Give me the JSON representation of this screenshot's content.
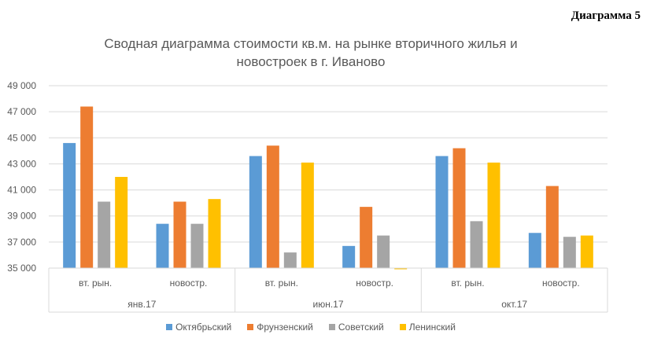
{
  "header": {
    "diagram_label": "Диаграмма 5",
    "title_line1": "Сводная диаграмма стоимости кв.м. на рынке вторичного жилья и",
    "title_line2": "новостроек в г. Иваново"
  },
  "chart_data": {
    "type": "bar",
    "title": "Сводная диаграмма стоимости кв.м. на рынке вторичного жилья и новостроек в г. Иваново",
    "ylim": [
      35000,
      49000
    ],
    "yticks": [
      "35 000",
      "37 000",
      "39 000",
      "41 000",
      "43 000",
      "45 000",
      "47 000",
      "49 000"
    ],
    "ytick_values": [
      35000,
      37000,
      39000,
      41000,
      43000,
      45000,
      47000,
      49000
    ],
    "groups": [
      "янв.17",
      "июн.17",
      "окт.17"
    ],
    "categories": [
      "вт. рын.",
      "новостр.",
      "вт. рын.",
      "новостр.",
      "вт. рын.",
      "новостр."
    ],
    "series": [
      {
        "name": "Октябрьский",
        "color": "#5B9BD5",
        "values": [
          44600,
          38400,
          43600,
          36700,
          43600,
          37700
        ]
      },
      {
        "name": "Фрунзенский",
        "color": "#ED7D31",
        "values": [
          47400,
          40100,
          44400,
          39700,
          44200,
          41300
        ]
      },
      {
        "name": "Советский",
        "color": "#A5A5A5",
        "values": [
          40100,
          38400,
          36200,
          37500,
          38600,
          37400
        ]
      },
      {
        "name": "Ленинский",
        "color": "#FFC000",
        "values": [
          42000,
          40300,
          43100,
          34950,
          43100,
          37500
        ]
      }
    ],
    "grid": true,
    "legend_position": "bottom"
  }
}
